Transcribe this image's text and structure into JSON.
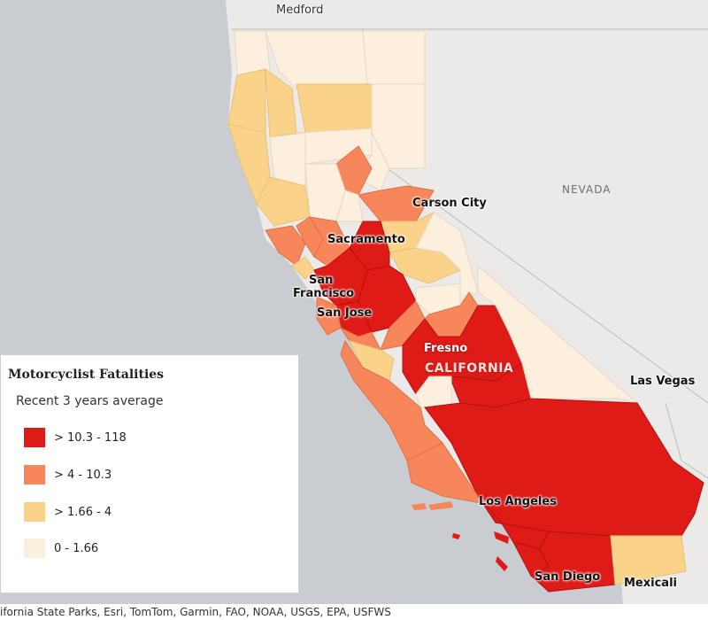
{
  "colors": {
    "water": "#c9cdd1",
    "land": "#eceae8",
    "class_1": "#de1b17",
    "class_2": "#f7875a",
    "class_3": "#fbd289",
    "class_4": "#fdefdd"
  },
  "places": {
    "medford": "Medford",
    "nevada": "NEVADA",
    "carson_city": "Carson City",
    "sacramento": "Sacramento",
    "san_francisco_1": "San",
    "san_francisco_2": "Francisco",
    "san_jose": "San Jose",
    "fresno": "Fresno",
    "california": "CALIFORNIA",
    "las_vegas": "Las Vegas",
    "los_angeles": "Los Angeles",
    "san_diego": "San Diego",
    "mexicali": "Mexicali"
  },
  "legend": {
    "title": "Motorcyclist Fatalities",
    "subtitle": "Recent 3 years average",
    "items": [
      {
        "label": "> 10.3 - 118",
        "color": "#de1b17"
      },
      {
        "label": "> 4 - 10.3",
        "color": "#f7875a"
      },
      {
        "label": "> 1.66 - 4",
        "color": "#fbd289"
      },
      {
        "label": "0 - 1.66",
        "color": "#fdefdd"
      }
    ]
  },
  "attribution": "ifornia State Parks, Esri, TomTom, Garmin, FAO, NOAA, USGS, EPA, USFWS"
}
